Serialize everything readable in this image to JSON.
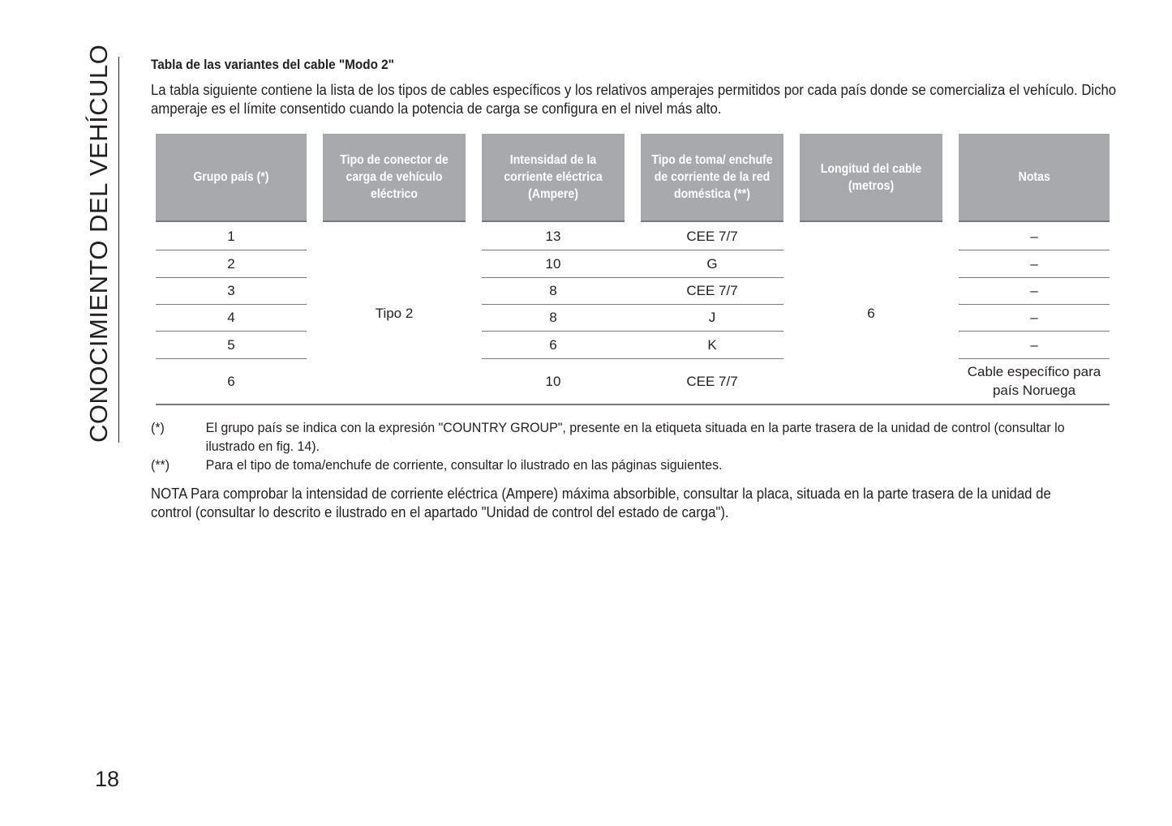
{
  "side_title": "CONOCIMIENTO DEL VEHÍCULO",
  "title": "Tabla de las variantes del cable \"Modo 2\"",
  "intro": "La tabla siguiente contiene la lista de los tipos de cables específicos y los relativos amperajes permitidos por cada país donde se comercializa el vehículo. Dicho amperaje es el límite consentido cuando la potencia de carga se configura en el nivel más alto.",
  "table": {
    "headers": [
      "Grupo país (*)",
      "Tipo de conector de carga de vehículo eléctrico",
      "Intensidad de la corriente eléctrica (Ampere)",
      "Tipo de toma/ enchufe de corriente de la red doméstica (**)",
      "Longitud del cable (metros)",
      "Notas"
    ],
    "connector_type": "Tipo 2",
    "cable_length": "6",
    "rows": [
      {
        "group": "1",
        "amps": "13",
        "plug": "CEE 7/7",
        "notes": "–"
      },
      {
        "group": "2",
        "amps": "10",
        "plug": "G",
        "notes": "–"
      },
      {
        "group": "3",
        "amps": "8",
        "plug": "CEE 7/7",
        "notes": "–"
      },
      {
        "group": "4",
        "amps": "8",
        "plug": "J",
        "notes": "–"
      },
      {
        "group": "5",
        "amps": "6",
        "plug": "K",
        "notes": "–"
      },
      {
        "group": "6",
        "amps": "10",
        "plug": "CEE 7/7",
        "notes": "Cable específico para país Noruega"
      }
    ]
  },
  "footnotes": [
    {
      "mark": "(*)",
      "text": "El grupo país se indica con la expresión \"COUNTRY GROUP\", presente en la etiqueta situada en la parte trasera de la unidad de control (consultar lo ilustrado en fig. 14)."
    },
    {
      "mark": "(**)",
      "text": "Para el tipo de toma/enchufe de corriente, consultar lo ilustrado en las páginas siguientes."
    }
  ],
  "note": "NOTA Para comprobar la intensidad de corriente eléctrica (Ampere) máxima absorbible, consultar la placa, situada en la parte trasera de la unidad de control (consultar lo descrito e ilustrado en el apartado \"Unidad de control del estado de carga\").",
  "page_number": "18",
  "colors": {
    "header_bg": "#a7a9ac",
    "header_text": "#ffffff",
    "rule": "#77787b"
  }
}
